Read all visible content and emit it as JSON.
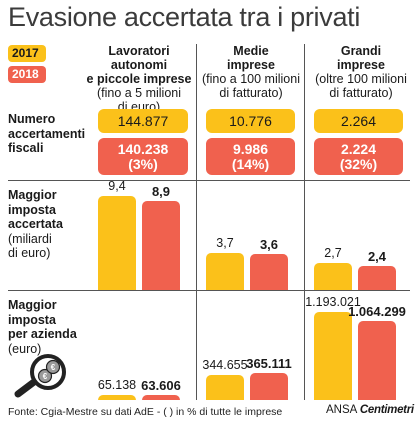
{
  "title": "Evasione accertata tra i privati",
  "legend": [
    "2017",
    "2018"
  ],
  "colors": {
    "y2017": "#fbc11a",
    "y2018": "#f0614e"
  },
  "columns": [
    {
      "line1": "Lavoratori autonomi",
      "line2": "e piccole imprese",
      "line3": "(fino a 5 milioni",
      "line4": "di euro)"
    },
    {
      "line1": "Medie",
      "line2": "imprese",
      "line3": "(fino a 100 milioni",
      "line4": "di fatturato)"
    },
    {
      "line1": "Grandi",
      "line2": "imprese",
      "line3": "(oltre 100 milioni",
      "line4": "di fatturato)"
    }
  ],
  "rows": {
    "accertamenti": {
      "line1": "Numero",
      "line2": "accertamenti",
      "line3": "fiscali"
    },
    "imposta": {
      "line1": "Maggior",
      "line2": "imposta",
      "line3": "accertata",
      "line4": "(miliardi",
      "line5": "di euro)"
    },
    "azienda": {
      "line1": "Maggior",
      "line2": "imposta",
      "line3": "per azienda",
      "line4": "(euro)"
    }
  },
  "accertamenti_values": [
    {
      "v2017": "144.877",
      "v2018": "140.238",
      "pct": "(3%)"
    },
    {
      "v2017": "10.776",
      "v2018": "9.986",
      "pct": "(14%)"
    },
    {
      "v2017": "2.264",
      "v2018": "2.224",
      "pct": "(32%)"
    }
  ],
  "chart_data": [
    {
      "type": "bar",
      "title": "Maggior imposta accertata (miliardi di euro)",
      "categories": [
        "Lavoratori autonomi e piccole imprese",
        "Medie imprese",
        "Grandi imprese"
      ],
      "series": [
        {
          "name": "2017",
          "values": [
            9.4,
            3.7,
            2.7
          ],
          "labels": [
            "9,4",
            "3,7",
            "2,7"
          ]
        },
        {
          "name": "2018",
          "values": [
            8.9,
            3.6,
            2.4
          ],
          "labels": [
            "8,9",
            "3,6",
            "2,4"
          ]
        }
      ],
      "ylim": [
        0,
        9.4
      ]
    },
    {
      "type": "bar",
      "title": "Maggior imposta per azienda (euro)",
      "categories": [
        "Lavoratori autonomi e piccole imprese",
        "Medie imprese",
        "Grandi imprese"
      ],
      "series": [
        {
          "name": "2017",
          "values": [
            65138,
            344655,
            1193021
          ],
          "labels": [
            "65.138",
            "344.655",
            "1.193.021"
          ]
        },
        {
          "name": "2018",
          "values": [
            63606,
            365111,
            1064299
          ],
          "labels": [
            "63.606",
            "365.111",
            "1.064.299"
          ]
        }
      ],
      "ylim": [
        0,
        1193021
      ]
    }
  ],
  "footer": "Fonte: Cgia-Mestre su dati AdE - ( ) in % di tutte le imprese",
  "logo": {
    "prefix": "ANSA",
    "brand": "Centimetri"
  },
  "icon": "magnifier-euro-icon"
}
